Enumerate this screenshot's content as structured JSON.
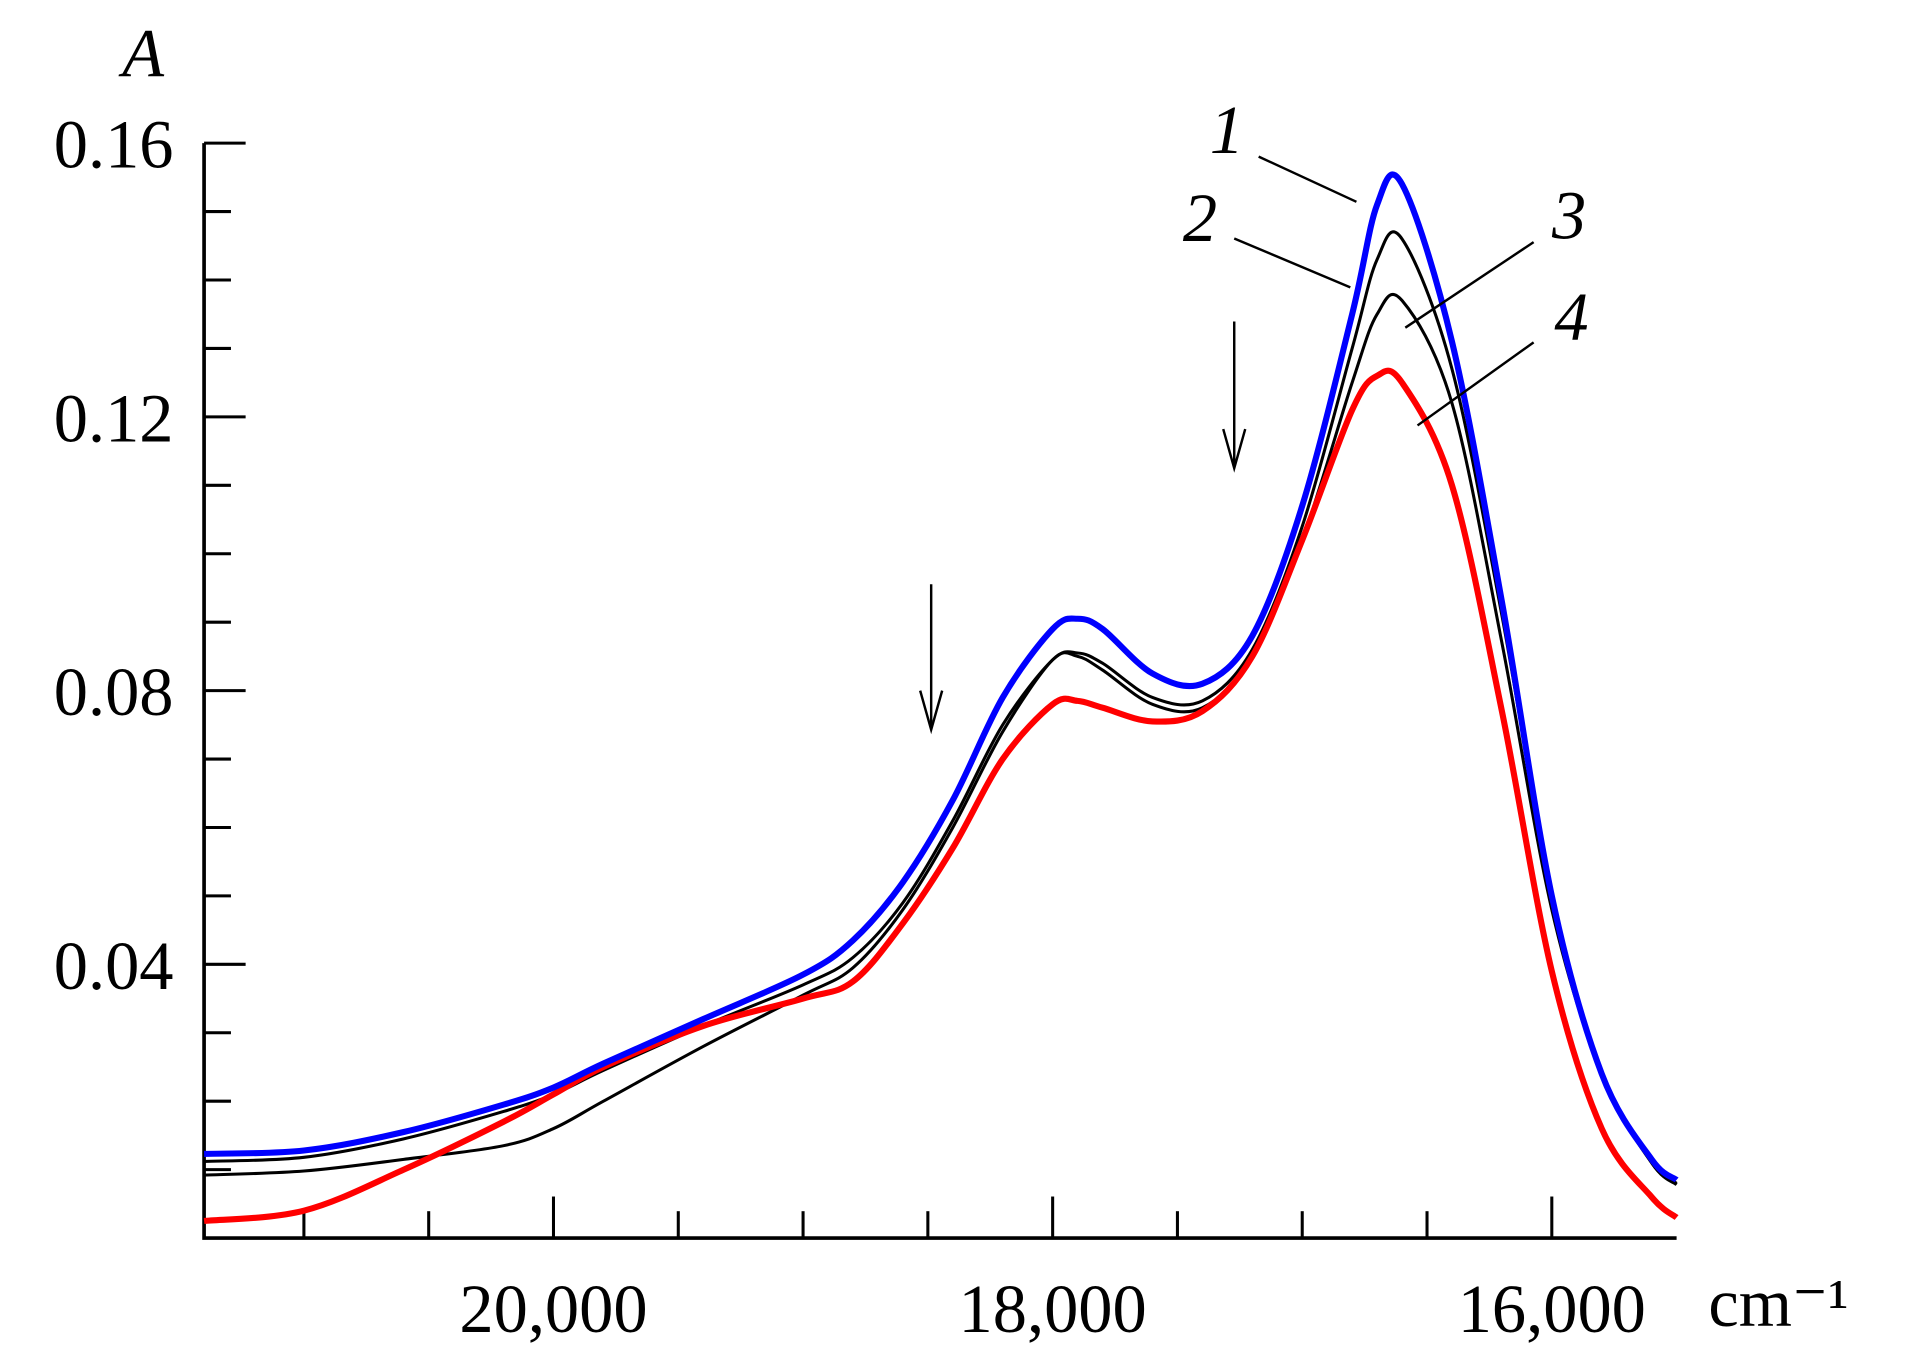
{
  "chart_data": {
    "type": "line",
    "y_label": "A",
    "x_label": "cm⁻¹",
    "x": [
      21400,
      21000,
      20600,
      20200,
      20000,
      19800,
      19400,
      19000,
      18800,
      18600,
      18400,
      18200,
      18000,
      17900,
      17800,
      17600,
      17400,
      17200,
      17000,
      16800,
      16700,
      16600,
      16400,
      16200,
      16000,
      15800,
      15600,
      15500
    ],
    "series": [
      {
        "name": "1",
        "color": "#0000ff",
        "values": [
          0.0123,
          0.0128,
          0.0155,
          0.0195,
          0.022,
          0.0255,
          0.032,
          0.0385,
          0.0435,
          0.052,
          0.064,
          0.079,
          0.089,
          0.0905,
          0.089,
          0.0825,
          0.081,
          0.088,
          0.107,
          0.135,
          0.151,
          0.154,
          0.131,
          0.093,
          0.05,
          0.024,
          0.0115,
          0.0085
        ]
      },
      {
        "name": "2",
        "color": "#000000",
        "values": [
          0.0112,
          0.0118,
          0.0145,
          0.0185,
          0.021,
          0.0245,
          0.031,
          0.037,
          0.041,
          0.049,
          0.061,
          0.075,
          0.0845,
          0.0855,
          0.084,
          0.079,
          0.0785,
          0.086,
          0.104,
          0.13,
          0.143,
          0.146,
          0.127,
          0.091,
          0.05,
          0.024,
          0.011,
          0.008
        ]
      },
      {
        "name": "3",
        "color": "#000000",
        "values": [
          0.0092,
          0.0098,
          0.0115,
          0.0135,
          0.016,
          0.02,
          0.028,
          0.0355,
          0.0395,
          0.048,
          0.06,
          0.074,
          0.0845,
          0.085,
          0.083,
          0.078,
          0.0775,
          0.085,
          0.102,
          0.125,
          0.135,
          0.137,
          0.122,
          0.087,
          0.048,
          0.024,
          0.011,
          0.0078
        ]
      },
      {
        "name": "4",
        "color": "#ff0000",
        "values": [
          0.0025,
          0.004,
          0.01,
          0.017,
          0.021,
          0.025,
          0.031,
          0.035,
          0.0375,
          0.046,
          0.057,
          0.07,
          0.078,
          0.0785,
          0.0775,
          0.0755,
          0.077,
          0.085,
          0.102,
          0.121,
          0.126,
          0.125,
          0.11,
          0.077,
          0.039,
          0.016,
          0.006,
          0.003
        ]
      }
    ],
    "xlim": [
      21400,
      15500
    ],
    "xticks": [
      {
        "value": 20000,
        "label": "20,000"
      },
      {
        "value": 18000,
        "label": "18,000"
      },
      {
        "value": 16000,
        "label": "16,000"
      }
    ],
    "xticks_minor": [
      21000,
      20500,
      19500,
      19000,
      18500,
      17500,
      17000,
      16500
    ],
    "ylim": [
      0,
      0.16
    ],
    "yticks": [
      0.04,
      0.08,
      0.12,
      0.16
    ],
    "yticks_minor": [
      0.01,
      0.02,
      0.03,
      0.05,
      0.06,
      0.07,
      0.09,
      0.1,
      0.11,
      0.13,
      0.14,
      0.15
    ]
  }
}
